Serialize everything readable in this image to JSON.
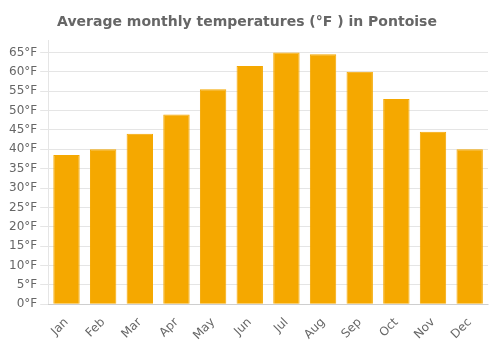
{
  "chart_data": {
    "type": "bar",
    "title": "Average monthly temperatures (°F ) in Pontoise",
    "categories": [
      "Jan",
      "Feb",
      "Mar",
      "Apr",
      "May",
      "Jun",
      "Jul",
      "Aug",
      "Sep",
      "Oct",
      "Nov",
      "Dec"
    ],
    "values": [
      38.5,
      40.0,
      44.0,
      49.0,
      55.5,
      61.5,
      65.0,
      64.5,
      60.0,
      53.0,
      44.5,
      40.0
    ],
    "color": "#F5A800",
    "ylim": [
      0,
      68
    ],
    "yticks": [
      {
        "value": 0,
        "label": "0°F"
      },
      {
        "value": 5,
        "label": "5°F"
      },
      {
        "value": 10,
        "label": "10°F"
      },
      {
        "value": 15,
        "label": "15°F"
      },
      {
        "value": 20,
        "label": "20°F"
      },
      {
        "value": 25,
        "label": "25°F"
      },
      {
        "value": 30,
        "label": "30°F"
      },
      {
        "value": 35,
        "label": "35°F"
      },
      {
        "value": 40,
        "label": "40°F"
      },
      {
        "value": 45,
        "label": "45°F"
      },
      {
        "value": 50,
        "label": "50°F"
      },
      {
        "value": 55,
        "label": "55°F"
      },
      {
        "value": 60,
        "label": "60°F"
      },
      {
        "value": 65,
        "label": "65°F"
      }
    ],
    "grid": true
  }
}
